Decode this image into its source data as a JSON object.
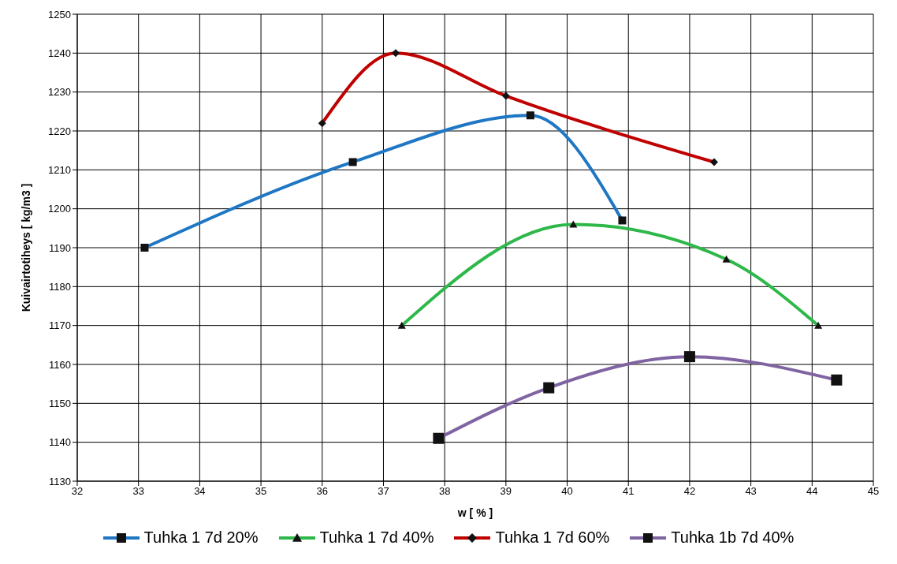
{
  "chart_data": {
    "type": "line",
    "xlabel": "w [ % ]",
    "ylabel": "Kuivairtotiheys  [ kg/m3 ]",
    "xlim": [
      32,
      45
    ],
    "xticks": [
      32,
      33,
      34,
      35,
      36,
      37,
      38,
      39,
      40,
      41,
      42,
      43,
      44,
      45
    ],
    "ylim": [
      1130,
      1250
    ],
    "yticks": [
      1130,
      1140,
      1150,
      1160,
      1170,
      1180,
      1190,
      1200,
      1210,
      1220,
      1230,
      1240,
      1250
    ],
    "grid": true,
    "legend": "bottom",
    "line_style": "solid",
    "series": [
      {
        "name": "Tuhka 1 7d 20%",
        "color": "#1f77c4",
        "marker": "square",
        "x": [
          33.1,
          36.5,
          39.4,
          40.9
        ],
        "values": [
          1190,
          1212,
          1224,
          1197
        ]
      },
      {
        "name": "Tuhka 1 7d 40%",
        "color": "#2eb84a",
        "marker": "triangle",
        "x": [
          37.3,
          40.1,
          42.6,
          44.1
        ],
        "values": [
          1170,
          1196,
          1187,
          1170
        ]
      },
      {
        "name": "Tuhka 1 7d 60%",
        "color": "#c00000",
        "marker": "diamond",
        "x": [
          36,
          37.2,
          39,
          42.4
        ],
        "values": [
          1222,
          1240,
          1229,
          1212
        ]
      },
      {
        "name": "Tuhka 1b 7d 40%",
        "color": "#8064a2",
        "marker": "square",
        "x": [
          37.9,
          39.7,
          42,
          44.4
        ],
        "values": [
          1141,
          1154,
          1162,
          1156
        ]
      }
    ]
  }
}
